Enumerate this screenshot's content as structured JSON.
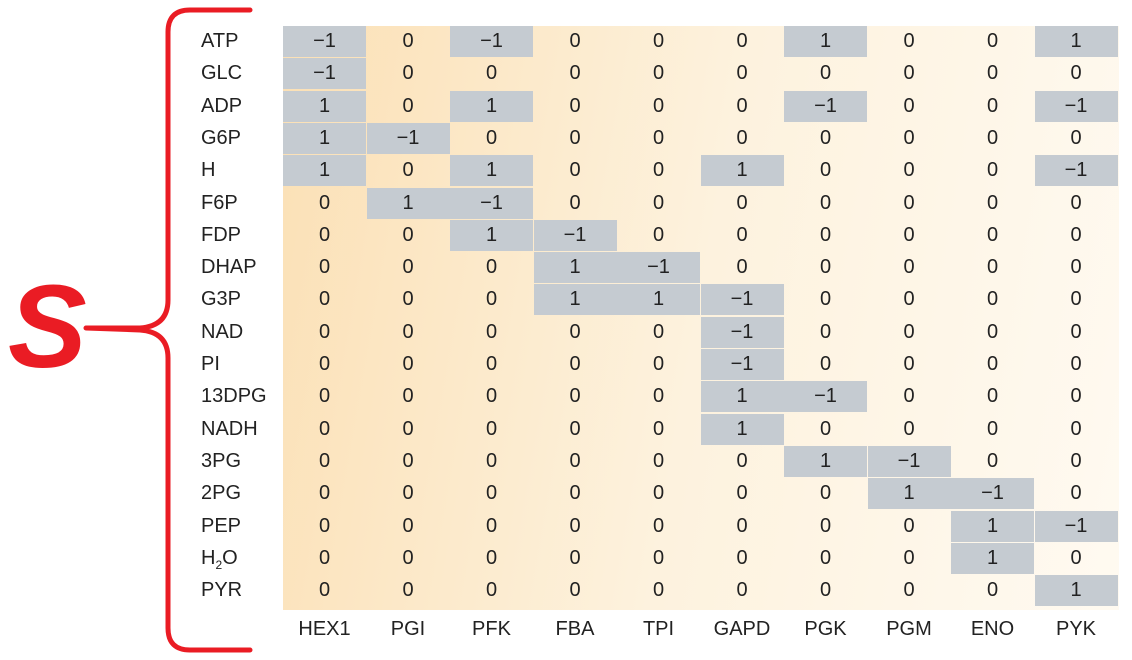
{
  "symbol": "S",
  "colors": {
    "brace": "#ea1c24",
    "highlight": "#c5cbd1",
    "background_start": "#fbe0b5",
    "background_end": "#fffaf1"
  },
  "reactions": [
    "HEX1",
    "PGI",
    "PFK",
    "FBA",
    "TPI",
    "GAPD",
    "PGK",
    "PGM",
    "ENO",
    "PYK"
  ],
  "metabolites": [
    {
      "label": "ATP",
      "values": [
        "−1",
        "0",
        "−1",
        "0",
        "0",
        "0",
        "1",
        "0",
        "0",
        "1"
      ]
    },
    {
      "label": "GLC",
      "values": [
        "−1",
        "0",
        "0",
        "0",
        "0",
        "0",
        "0",
        "0",
        "0",
        "0"
      ]
    },
    {
      "label": "ADP",
      "values": [
        "1",
        "0",
        "1",
        "0",
        "0",
        "0",
        "−1",
        "0",
        "0",
        "−1"
      ]
    },
    {
      "label": "G6P",
      "values": [
        "1",
        "−1",
        "0",
        "0",
        "0",
        "0",
        "0",
        "0",
        "0",
        "0"
      ]
    },
    {
      "label": "H",
      "values": [
        "1",
        "0",
        "1",
        "0",
        "0",
        "1",
        "0",
        "0",
        "0",
        "−1"
      ]
    },
    {
      "label": "F6P",
      "values": [
        "0",
        "1",
        "−1",
        "0",
        "0",
        "0",
        "0",
        "0",
        "0",
        "0"
      ]
    },
    {
      "label": "FDP",
      "values": [
        "0",
        "0",
        "1",
        "−1",
        "0",
        "0",
        "0",
        "0",
        "0",
        "0"
      ]
    },
    {
      "label": "DHAP",
      "values": [
        "0",
        "0",
        "0",
        "1",
        "−1",
        "0",
        "0",
        "0",
        "0",
        "0"
      ]
    },
    {
      "label": "G3P",
      "values": [
        "0",
        "0",
        "0",
        "1",
        "1",
        "−1",
        "0",
        "0",
        "0",
        "0"
      ]
    },
    {
      "label": "NAD",
      "values": [
        "0",
        "0",
        "0",
        "0",
        "0",
        "−1",
        "0",
        "0",
        "0",
        "0"
      ]
    },
    {
      "label": "PI",
      "values": [
        "0",
        "0",
        "0",
        "0",
        "0",
        "−1",
        "0",
        "0",
        "0",
        "0"
      ]
    },
    {
      "label": "13DPG",
      "values": [
        "0",
        "0",
        "0",
        "0",
        "0",
        "1",
        "−1",
        "0",
        "0",
        "0"
      ]
    },
    {
      "label": "NADH",
      "values": [
        "0",
        "0",
        "0",
        "0",
        "0",
        "1",
        "0",
        "0",
        "0",
        "0"
      ]
    },
    {
      "label": "3PG",
      "values": [
        "0",
        "0",
        "0",
        "0",
        "0",
        "0",
        "1",
        "−1",
        "0",
        "0"
      ]
    },
    {
      "label": "2PG",
      "values": [
        "0",
        "0",
        "0",
        "0",
        "0",
        "0",
        "0",
        "1",
        "−1",
        "0"
      ]
    },
    {
      "label": "PEP",
      "values": [
        "0",
        "0",
        "0",
        "0",
        "0",
        "0",
        "0",
        "0",
        "1",
        "−1"
      ]
    },
    {
      "label": "H",
      "subscript": "2",
      "label_suffix": "O",
      "values": [
        "0",
        "0",
        "0",
        "0",
        "0",
        "0",
        "0",
        "0",
        "1",
        "0"
      ]
    },
    {
      "label": "PYR",
      "values": [
        "0",
        "0",
        "0",
        "0",
        "0",
        "0",
        "0",
        "0",
        "0",
        "1"
      ]
    }
  ]
}
